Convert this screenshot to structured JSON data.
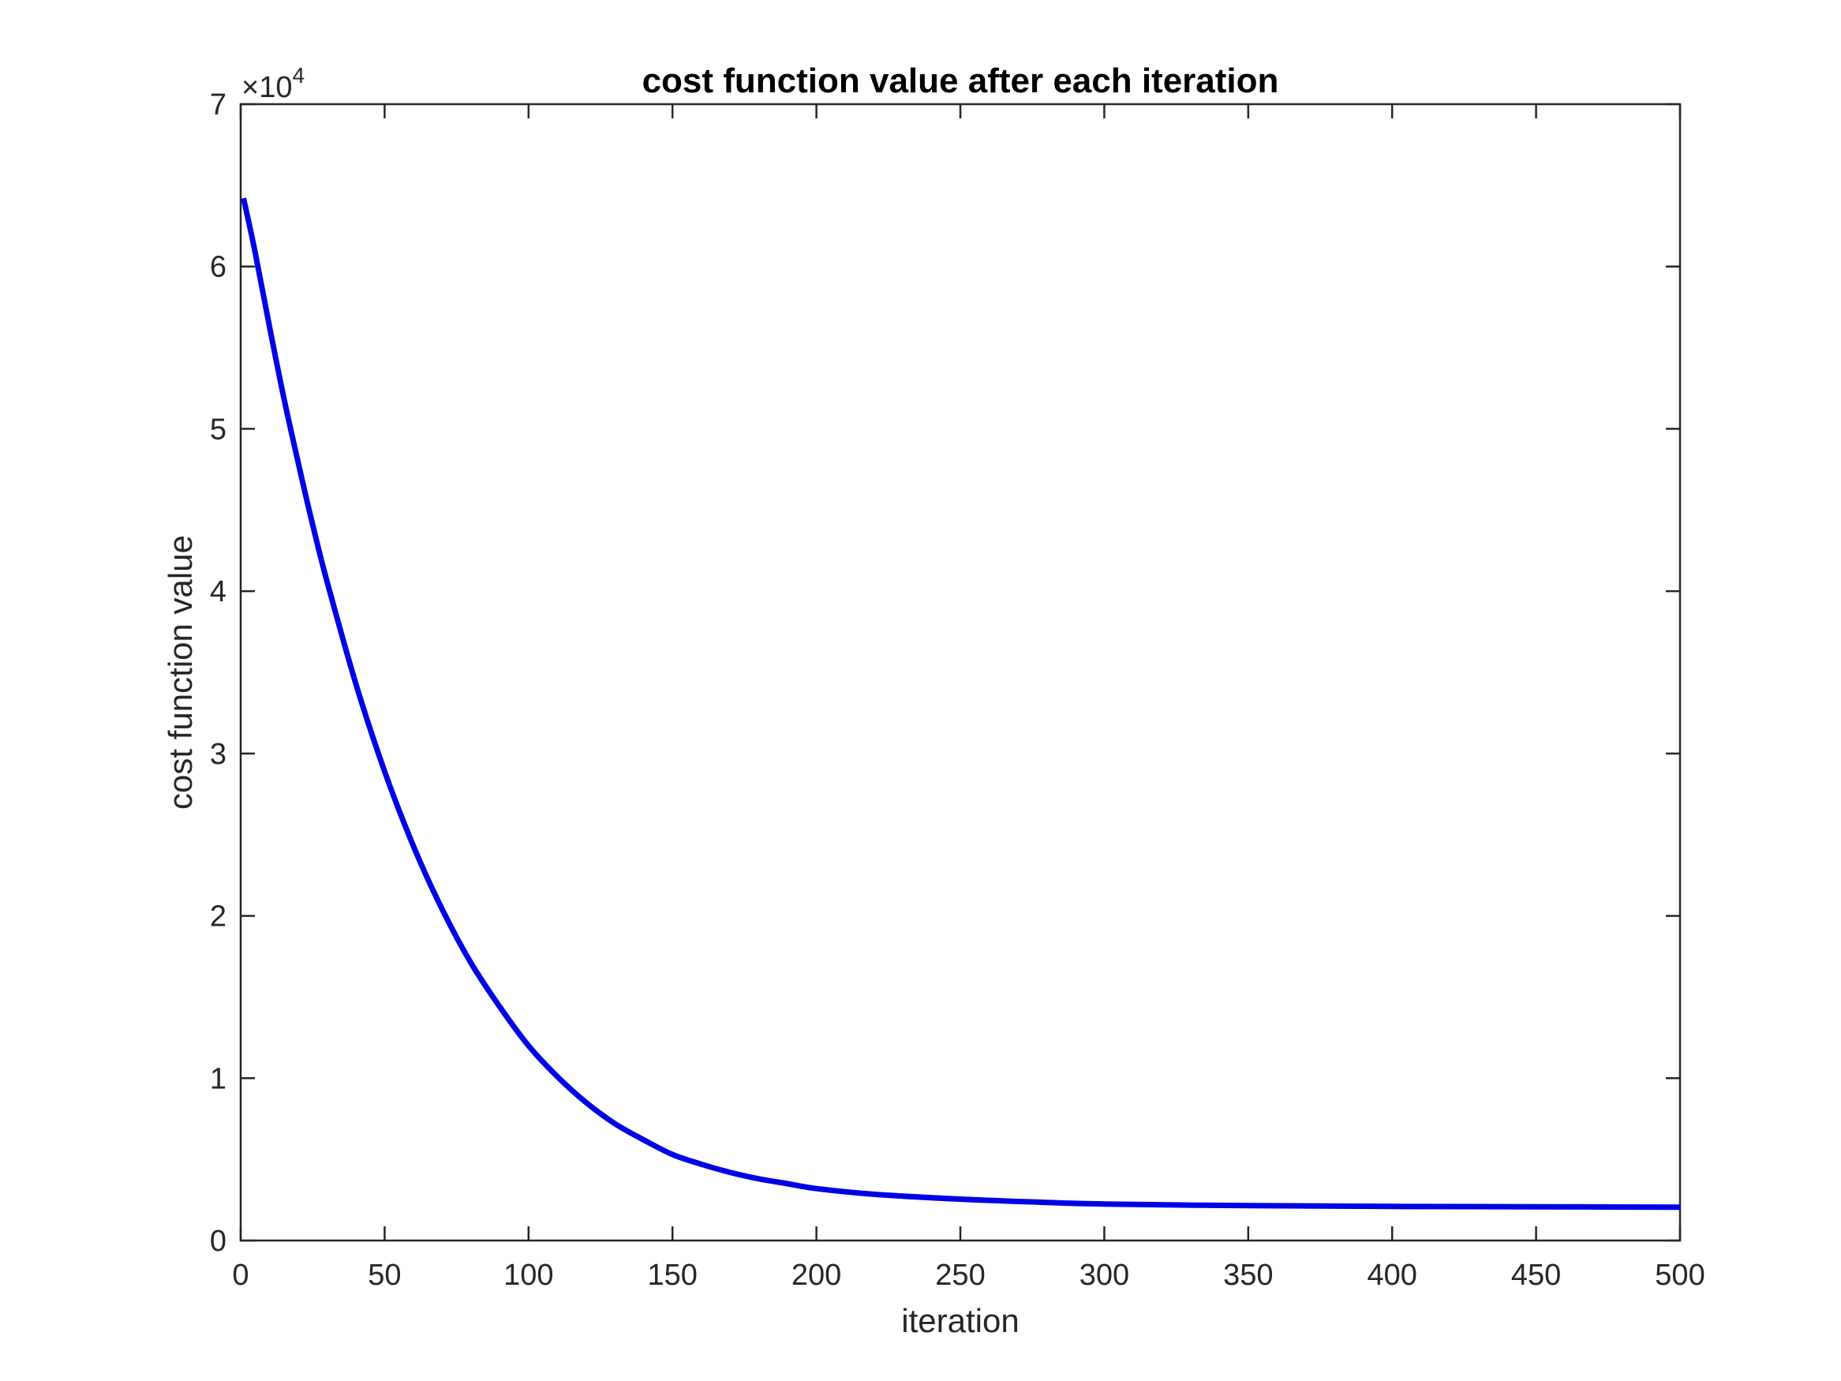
{
  "chart_data": {
    "type": "line",
    "title": "cost function value after each iteration",
    "xlabel": "iteration",
    "ylabel": "cost function value",
    "xlim": [
      0,
      500
    ],
    "ylim": [
      0,
      70000
    ],
    "x_ticks": [
      0,
      50,
      100,
      150,
      200,
      250,
      300,
      350,
      400,
      450,
      500
    ],
    "x_tick_labels": [
      "0",
      "50",
      "100",
      "150",
      "200",
      "250",
      "300",
      "350",
      "400",
      "450",
      "500"
    ],
    "y_ticks": [
      0,
      10000,
      20000,
      30000,
      40000,
      50000,
      60000,
      70000
    ],
    "y_tick_labels": [
      "0",
      "1",
      "2",
      "3",
      "4",
      "5",
      "6",
      "7"
    ],
    "y_exponent": {
      "times": "×10",
      "power": "4"
    },
    "grid": false,
    "line_color": "#0000e6",
    "series": [
      {
        "x": [
          1,
          5,
          10,
          15,
          20,
          25,
          30,
          40,
          50,
          60,
          70,
          80,
          90,
          100,
          110,
          120,
          130,
          140,
          150,
          160,
          170,
          180,
          190,
          200,
          220,
          250,
          280,
          300,
          350,
          400,
          450,
          500
        ],
        "values": [
          64200,
          60900,
          56300,
          51900,
          47900,
          44100,
          40600,
          34300,
          28900,
          24300,
          20400,
          17100,
          14400,
          12000,
          10100,
          8500,
          7200,
          6200,
          5300,
          4700,
          4200,
          3800,
          3500,
          3200,
          2850,
          2550,
          2350,
          2250,
          2150,
          2100,
          2080,
          2050
        ]
      }
    ]
  }
}
